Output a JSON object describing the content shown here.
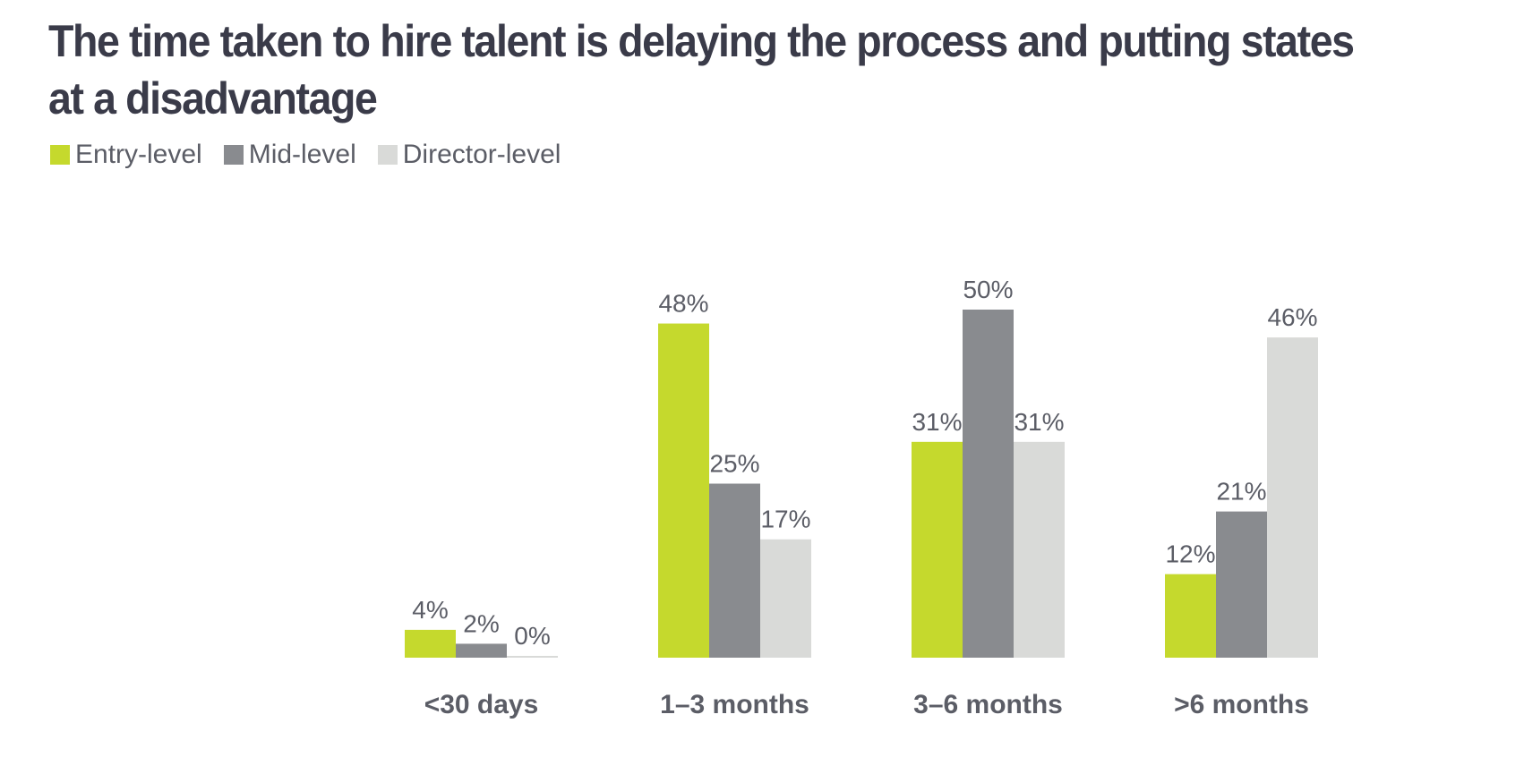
{
  "chart_data": {
    "type": "bar",
    "title": "The time taken to hire talent is delaying the process and putting states at a disadvantage",
    "categories": [
      "<30 days",
      "1–3 months",
      "3–6 months",
      ">6 months"
    ],
    "series": [
      {
        "name": "Entry-level",
        "color": "#c5d92d",
        "values": [
          4,
          48,
          31,
          12
        ],
        "labels": [
          "4%",
          "48%",
          "31%",
          "12%"
        ]
      },
      {
        "name": "Mid-level",
        "color": "#898b8f",
        "values": [
          2,
          25,
          50,
          21
        ],
        "labels": [
          "2%",
          "25%",
          "50%",
          "21%"
        ]
      },
      {
        "name": "Director-level",
        "color": "#d9dad8",
        "values": [
          0,
          17,
          31,
          46
        ],
        "labels": [
          "0%",
          "17%",
          "31%",
          "46%"
        ]
      }
    ],
    "ylim": [
      0,
      50
    ],
    "unit": "%",
    "grid": false,
    "legend": "top-left",
    "xlabel": "",
    "ylabel": ""
  }
}
